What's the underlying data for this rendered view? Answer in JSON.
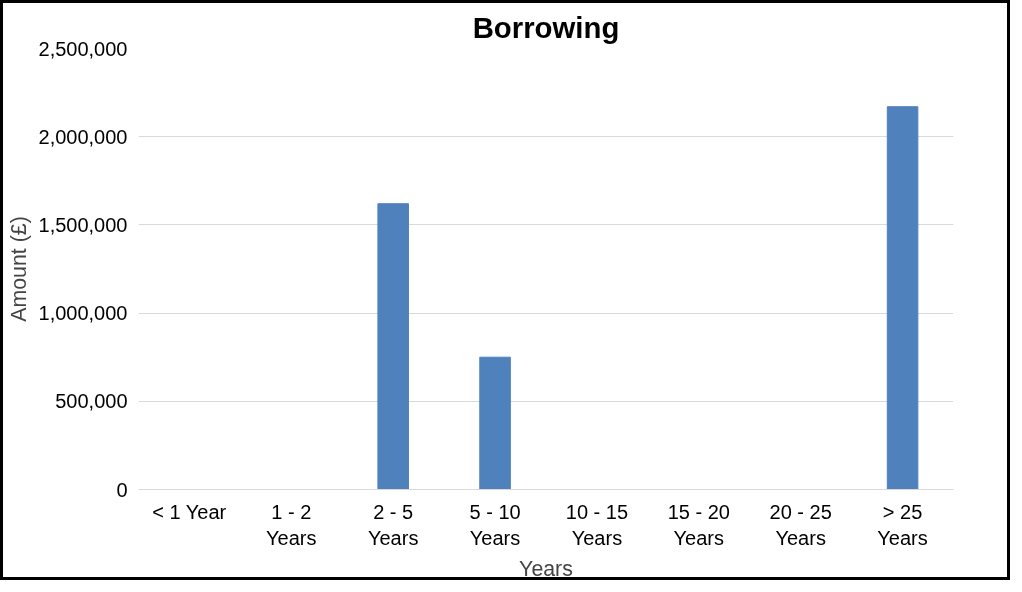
{
  "chart_data": {
    "type": "bar",
    "title": "Borrowing",
    "xlabel": "Years",
    "ylabel": "Amount (£)",
    "categories": [
      "< 1 Year",
      "1 - 2 Years",
      "2 - 5 Years",
      "5 - 10 Years",
      "10 - 15 Years",
      "15 - 20 Years",
      "20 - 25 Years",
      "> 25 Years"
    ],
    "values": [
      0,
      0,
      1620000,
      750000,
      0,
      0,
      0,
      2170000
    ],
    "color": "#4f81bd",
    "ylim": [
      0,
      2500000
    ],
    "yticks": [
      {
        "value": 0,
        "label": "0"
      },
      {
        "value": 500000,
        "label": "500,000"
      },
      {
        "value": 1000000,
        "label": "1,000,000"
      },
      {
        "value": 1500000,
        "label": "1,500,000"
      },
      {
        "value": 2000000,
        "label": "2,000,000"
      },
      {
        "value": 2500000,
        "label": "2,500,000"
      }
    ],
    "grid": "y"
  }
}
